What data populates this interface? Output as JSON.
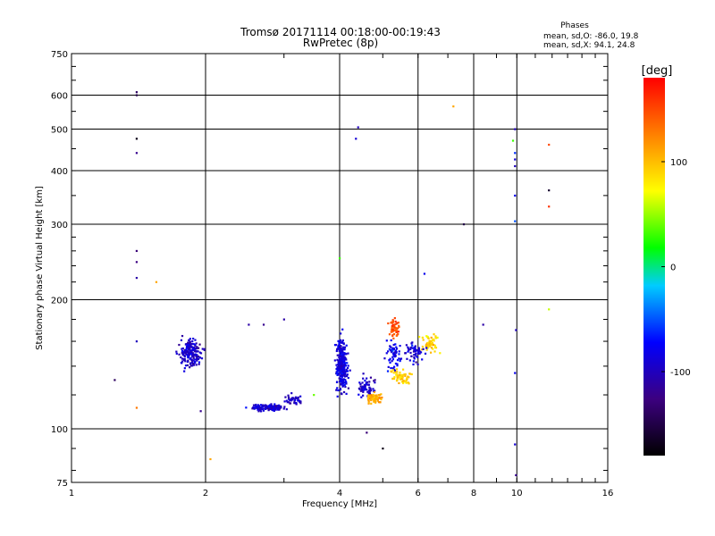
{
  "chart_data": {
    "type": "scatter",
    "title": "Tromsø 20171114 00:18:00-00:19:43",
    "subtitle": "RwPretec (8p)",
    "xlabel": "Frequency [MHz]",
    "ylabel": "Stationary phase Virtual Height [km]",
    "x_scale": "log2",
    "y_scale": "log",
    "xlim": [
      1,
      16
    ],
    "ylim": [
      75,
      750
    ],
    "x_ticks": [
      {
        "v": 1,
        "label": "1"
      },
      {
        "v": 2,
        "label": "2"
      },
      {
        "v": 4,
        "label": "4"
      },
      {
        "v": 6,
        "label": "6"
      },
      {
        "v": 8,
        "label": "8"
      },
      {
        "v": 10,
        "label": "10"
      },
      {
        "v": 16,
        "label": "16"
      }
    ],
    "y_ticks": [
      {
        "v": 75,
        "label": "75"
      },
      {
        "v": 100,
        "label": "100"
      },
      {
        "v": 200,
        "label": "200"
      },
      {
        "v": 300,
        "label": "300"
      },
      {
        "v": 400,
        "label": "400"
      },
      {
        "v": 500,
        "label": "500"
      },
      {
        "v": 600,
        "label": "600"
      },
      {
        "v": 750,
        "label": "750"
      }
    ],
    "grid": true,
    "phases": {
      "header": "Phases",
      "line_o": "mean, sd,O: -86.0, 19.8",
      "line_x": "mean, sd,X:  94.1, 24.8"
    },
    "colorbar": {
      "label": "[deg]",
      "range": [
        -180,
        180
      ],
      "ticks": [
        {
          "v": 100,
          "label": "100"
        },
        {
          "v": 0,
          "label": "0"
        },
        {
          "v": -100,
          "label": "-100"
        }
      ]
    },
    "clusters": [
      {
        "cx": 1.85,
        "cy": 150,
        "sx": 0.06,
        "sy": 0.07,
        "n": 190,
        "phase": -95
      },
      {
        "cx": 2.75,
        "cy": 112,
        "sx": 0.09,
        "sy": 0.015,
        "n": 150,
        "phase": -92
      },
      {
        "cx": 3.15,
        "cy": 117,
        "sx": 0.05,
        "sy": 0.03,
        "n": 45,
        "phase": -95
      },
      {
        "cx": 4.05,
        "cy": 140,
        "sx": 0.03,
        "sy": 0.13,
        "n": 290,
        "phase": -88
      },
      {
        "cx": 4.6,
        "cy": 125,
        "sx": 0.05,
        "sy": 0.05,
        "n": 60,
        "phase": -95
      },
      {
        "cx": 5.3,
        "cy": 148,
        "sx": 0.04,
        "sy": 0.08,
        "n": 60,
        "phase": -82
      },
      {
        "cx": 5.3,
        "cy": 172,
        "sx": 0.03,
        "sy": 0.05,
        "n": 50,
        "phase": 150
      },
      {
        "cx": 4.8,
        "cy": 118,
        "sx": 0.04,
        "sy": 0.03,
        "n": 70,
        "phase": 105
      },
      {
        "cx": 5.5,
        "cy": 132,
        "sx": 0.05,
        "sy": 0.04,
        "n": 60,
        "phase": 95
      },
      {
        "cx": 6.4,
        "cy": 158,
        "sx": 0.04,
        "sy": 0.05,
        "n": 60,
        "phase": 90
      },
      {
        "cx": 5.9,
        "cy": 150,
        "sx": 0.05,
        "sy": 0.05,
        "n": 55,
        "phase": -92
      }
    ],
    "points": [
      [
        1.4,
        610,
        -140
      ],
      [
        1.4,
        600,
        -150
      ],
      [
        1.4,
        475,
        -170
      ],
      [
        1.4,
        440,
        -120
      ],
      [
        1.4,
        260,
        -130
      ],
      [
        1.4,
        245,
        -125
      ],
      [
        1.4,
        225,
        -110
      ],
      [
        1.4,
        160,
        -100
      ],
      [
        1.4,
        112,
        130
      ],
      [
        1.55,
        220,
        110
      ],
      [
        1.25,
        130,
        -140
      ],
      [
        2.05,
        85,
        110
      ],
      [
        1.95,
        110,
        -120
      ],
      [
        2.5,
        175,
        -110
      ],
      [
        2.7,
        175,
        -120
      ],
      [
        3.0,
        180,
        -110
      ],
      [
        4.4,
        505,
        -100
      ],
      [
        4.35,
        475,
        -90
      ],
      [
        4.0,
        250,
        30
      ],
      [
        7.2,
        565,
        110
      ],
      [
        7.6,
        300,
        -150
      ],
      [
        8.4,
        175,
        -110
      ],
      [
        9.8,
        470,
        30
      ],
      [
        9.9,
        440,
        -60
      ],
      [
        9.9,
        425,
        -90
      ],
      [
        9.9,
        410,
        -100
      ],
      [
        9.9,
        350,
        -80
      ],
      [
        9.9,
        305,
        -50
      ],
      [
        9.95,
        170,
        -100
      ],
      [
        9.9,
        135,
        -80
      ],
      [
        9.9,
        92,
        -90
      ],
      [
        9.95,
        78,
        -120
      ],
      [
        9.9,
        500,
        -100
      ],
      [
        11.8,
        460,
        150
      ],
      [
        11.8,
        360,
        -160
      ],
      [
        11.8,
        330,
        160
      ],
      [
        11.8,
        190,
        60
      ],
      [
        5.0,
        90,
        -170
      ],
      [
        4.6,
        98,
        -130
      ],
      [
        3.5,
        120,
        40
      ],
      [
        6.2,
        230,
        -80
      ]
    ]
  }
}
